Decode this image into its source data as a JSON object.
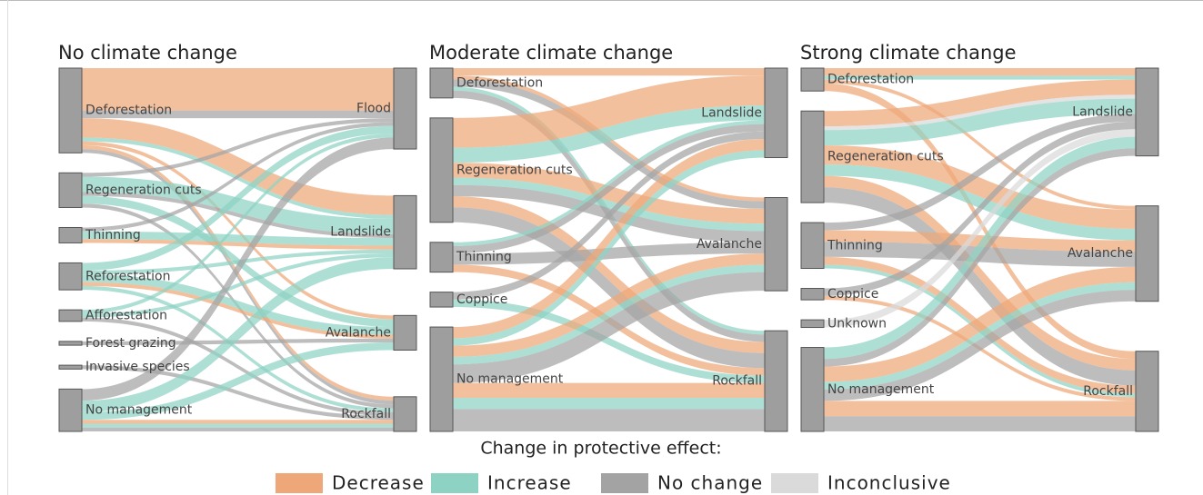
{
  "chart_data": [
    {
      "type": "sankey",
      "title": "No climate change",
      "sources": [
        "Deforestation",
        "Regeneration cuts",
        "Thinning",
        "Reforestation",
        "Afforestation",
        "Forest grazing",
        "Invasive species",
        "No management"
      ],
      "targets": [
        "Flood",
        "Landslide",
        "Avalanche",
        "Rockfall"
      ],
      "links": [
        {
          "source": "Deforestation",
          "target": "Flood",
          "effect": "Decrease",
          "value": 11
        },
        {
          "source": "Deforestation",
          "target": "Flood",
          "effect": "No change",
          "value": 2
        },
        {
          "source": "Deforestation",
          "target": "Landslide",
          "effect": "Decrease",
          "value": 5
        },
        {
          "source": "Deforestation",
          "target": "Landslide",
          "effect": "Increase",
          "value": 1
        },
        {
          "source": "Deforestation",
          "target": "Avalanche",
          "effect": "Decrease",
          "value": 1
        },
        {
          "source": "Deforestation",
          "target": "Rockfall",
          "effect": "Decrease",
          "value": 1
        },
        {
          "source": "Deforestation",
          "target": "Rockfall",
          "effect": "No change",
          "value": 1
        },
        {
          "source": "Regeneration cuts",
          "target": "Flood",
          "effect": "No change",
          "value": 1
        },
        {
          "source": "Regeneration cuts",
          "target": "Landslide",
          "effect": "Increase",
          "value": 4
        },
        {
          "source": "Regeneration cuts",
          "target": "Landslide",
          "effect": "No change",
          "value": 1
        },
        {
          "source": "Regeneration cuts",
          "target": "Avalanche",
          "effect": "Increase",
          "value": 2
        },
        {
          "source": "Regeneration cuts",
          "target": "Rockfall",
          "effect": "No change",
          "value": 1
        },
        {
          "source": "Thinning",
          "target": "Flood",
          "effect": "No change",
          "value": 1
        },
        {
          "source": "Thinning",
          "target": "Landslide",
          "effect": "Increase",
          "value": 2
        },
        {
          "source": "Thinning",
          "target": "Landslide",
          "effect": "Decrease",
          "value": 1
        },
        {
          "source": "Reforestation",
          "target": "Flood",
          "effect": "Increase",
          "value": 2
        },
        {
          "source": "Reforestation",
          "target": "Landslide",
          "effect": "Increase",
          "value": 1
        },
        {
          "source": "Reforestation",
          "target": "Avalanche",
          "effect": "Increase",
          "value": 2
        },
        {
          "source": "Reforestation",
          "target": "Avalanche",
          "effect": "Decrease",
          "value": 1
        },
        {
          "source": "Reforestation",
          "target": "Rockfall",
          "effect": "Increase",
          "value": 1
        },
        {
          "source": "Afforestation",
          "target": "Flood",
          "effect": "Increase",
          "value": 1
        },
        {
          "source": "Afforestation",
          "target": "Landslide",
          "effect": "Increase",
          "value": 1
        },
        {
          "source": "Afforestation",
          "target": "Rockfall",
          "effect": "No change",
          "value": 1
        },
        {
          "source": "Forest grazing",
          "target": "Avalanche",
          "effect": "No change",
          "value": 1
        },
        {
          "source": "Invasive species",
          "target": "Rockfall",
          "effect": "No change",
          "value": 1
        },
        {
          "source": "No management",
          "target": "Flood",
          "effect": "No change",
          "value": 3
        },
        {
          "source": "No management",
          "target": "Landslide",
          "effect": "Increase",
          "value": 3
        },
        {
          "source": "No management",
          "target": "Avalanche",
          "effect": "Increase",
          "value": 2
        },
        {
          "source": "No management",
          "target": "Rockfall",
          "effect": "Decrease",
          "value": 1
        },
        {
          "source": "No management",
          "target": "Rockfall",
          "effect": "Increase",
          "value": 1
        },
        {
          "source": "No management",
          "target": "Rockfall",
          "effect": "No change",
          "value": 1
        }
      ]
    },
    {
      "type": "sankey",
      "title": "Moderate climate change",
      "sources": [
        "Deforestation",
        "Regeneration cuts",
        "Thinning",
        "Coppice",
        "No management"
      ],
      "targets": [
        "Landslide",
        "Avalanche",
        "Rockfall"
      ],
      "links": [
        {
          "source": "Deforestation",
          "target": "Landslide",
          "effect": "Decrease",
          "value": 2
        },
        {
          "source": "Deforestation",
          "target": "Avalanche",
          "effect": "Decrease",
          "value": 1
        },
        {
          "source": "Deforestation",
          "target": "Avalanche",
          "effect": "No change",
          "value": 2
        },
        {
          "source": "Deforestation",
          "target": "Rockfall",
          "effect": "Increase",
          "value": 1
        },
        {
          "source": "Deforestation",
          "target": "Rockfall",
          "effect": "No change",
          "value": 2
        },
        {
          "source": "Regeneration cuts",
          "target": "Landslide",
          "effect": "Decrease",
          "value": 8
        },
        {
          "source": "Regeneration cuts",
          "target": "Landslide",
          "effect": "Increase",
          "value": 4
        },
        {
          "source": "Regeneration cuts",
          "target": "Avalanche",
          "effect": "Decrease",
          "value": 4
        },
        {
          "source": "Regeneration cuts",
          "target": "Avalanche",
          "effect": "Increase",
          "value": 2
        },
        {
          "source": "Regeneration cuts",
          "target": "Avalanche",
          "effect": "No change",
          "value": 3
        },
        {
          "source": "Regeneration cuts",
          "target": "Rockfall",
          "effect": "Decrease",
          "value": 3
        },
        {
          "source": "Regeneration cuts",
          "target": "Rockfall",
          "effect": "No change",
          "value": 4
        },
        {
          "source": "Thinning",
          "target": "Landslide",
          "effect": "Increase",
          "value": 1
        },
        {
          "source": "Thinning",
          "target": "Landslide",
          "effect": "No change",
          "value": 2
        },
        {
          "source": "Thinning",
          "target": "Avalanche",
          "effect": "No change",
          "value": 3
        },
        {
          "source": "Thinning",
          "target": "Rockfall",
          "effect": "Decrease",
          "value": 2
        },
        {
          "source": "Coppice",
          "target": "Landslide",
          "effect": "No change",
          "value": 2
        },
        {
          "source": "Coppice",
          "target": "Rockfall",
          "effect": "Increase",
          "value": 2
        },
        {
          "source": "No management",
          "target": "Landslide",
          "effect": "Decrease",
          "value": 3
        },
        {
          "source": "No management",
          "target": "Landslide",
          "effect": "Increase",
          "value": 2
        },
        {
          "source": "No management",
          "target": "Avalanche",
          "effect": "Decrease",
          "value": 3
        },
        {
          "source": "No management",
          "target": "Avalanche",
          "effect": "Increase",
          "value": 2
        },
        {
          "source": "No management",
          "target": "Avalanche",
          "effect": "No change",
          "value": 5
        },
        {
          "source": "No management",
          "target": "Rockfall",
          "effect": "Decrease",
          "value": 4
        },
        {
          "source": "No management",
          "target": "Rockfall",
          "effect": "Increase",
          "value": 3
        },
        {
          "source": "No management",
          "target": "Rockfall",
          "effect": "No change",
          "value": 6
        }
      ]
    },
    {
      "type": "sankey",
      "title": "Strong climate change",
      "sources": [
        "Deforestation",
        "Regeneration cuts",
        "Thinning",
        "Coppice",
        "Unknown",
        "No management"
      ],
      "targets": [
        "Landslide",
        "Avalanche",
        "Rockfall"
      ],
      "links": [
        {
          "source": "Deforestation",
          "target": "Landslide",
          "effect": "Decrease",
          "value": 2
        },
        {
          "source": "Deforestation",
          "target": "Landslide",
          "effect": "Increase",
          "value": 1
        },
        {
          "source": "Deforestation",
          "target": "Avalanche",
          "effect": "Decrease",
          "value": 1
        },
        {
          "source": "Deforestation",
          "target": "Rockfall",
          "effect": "Decrease",
          "value": 2
        },
        {
          "source": "Regeneration cuts",
          "target": "Landslide",
          "effect": "Decrease",
          "value": 4
        },
        {
          "source": "Regeneration cuts",
          "target": "Landslide",
          "effect": "Inconclusive",
          "value": 1
        },
        {
          "source": "Regeneration cuts",
          "target": "Landslide",
          "effect": "Increase",
          "value": 4
        },
        {
          "source": "Regeneration cuts",
          "target": "Avalanche",
          "effect": "Decrease",
          "value": 5
        },
        {
          "source": "Regeneration cuts",
          "target": "Avalanche",
          "effect": "Increase",
          "value": 3
        },
        {
          "source": "Regeneration cuts",
          "target": "Rockfall",
          "effect": "Decrease",
          "value": 3
        },
        {
          "source": "Regeneration cuts",
          "target": "Rockfall",
          "effect": "No change",
          "value": 4
        },
        {
          "source": "Thinning",
          "target": "Landslide",
          "effect": "No change",
          "value": 2
        },
        {
          "source": "Thinning",
          "target": "Avalanche",
          "effect": "Decrease",
          "value": 3
        },
        {
          "source": "Thinning",
          "target": "Avalanche",
          "effect": "No change",
          "value": 4
        },
        {
          "source": "Thinning",
          "target": "Rockfall",
          "effect": "Decrease",
          "value": 2
        },
        {
          "source": "Thinning",
          "target": "Rockfall",
          "effect": "Increase",
          "value": 1
        },
        {
          "source": "Coppice",
          "target": "Landslide",
          "effect": "No change",
          "value": 2
        },
        {
          "source": "Coppice",
          "target": "Rockfall",
          "effect": "Decrease",
          "value": 1
        },
        {
          "source": "Unknown",
          "target": "Landslide",
          "effect": "Inconclusive",
          "value": 2
        },
        {
          "source": "No management",
          "target": "Landslide",
          "effect": "Increase",
          "value": 3
        },
        {
          "source": "No management",
          "target": "Landslide",
          "effect": "No change",
          "value": 2
        },
        {
          "source": "No management",
          "target": "Avalanche",
          "effect": "Decrease",
          "value": 4
        },
        {
          "source": "No management",
          "target": "Avalanche",
          "effect": "Increase",
          "value": 2
        },
        {
          "source": "No management",
          "target": "Avalanche",
          "effect": "No change",
          "value": 3
        },
        {
          "source": "No management",
          "target": "Rockfall",
          "effect": "Decrease",
          "value": 4
        },
        {
          "source": "No management",
          "target": "Rockfall",
          "effect": "No change",
          "value": 4
        }
      ]
    }
  ],
  "legend": {
    "title": "Change in protective effect:",
    "items": [
      {
        "name": "Decrease",
        "color": "#eea778"
      },
      {
        "name": "Increase",
        "color": "#8dd2c3"
      },
      {
        "name": "No change",
        "color": "#a3a3a3"
      },
      {
        "name": "Inconclusive",
        "color": "#dadada"
      }
    ]
  }
}
